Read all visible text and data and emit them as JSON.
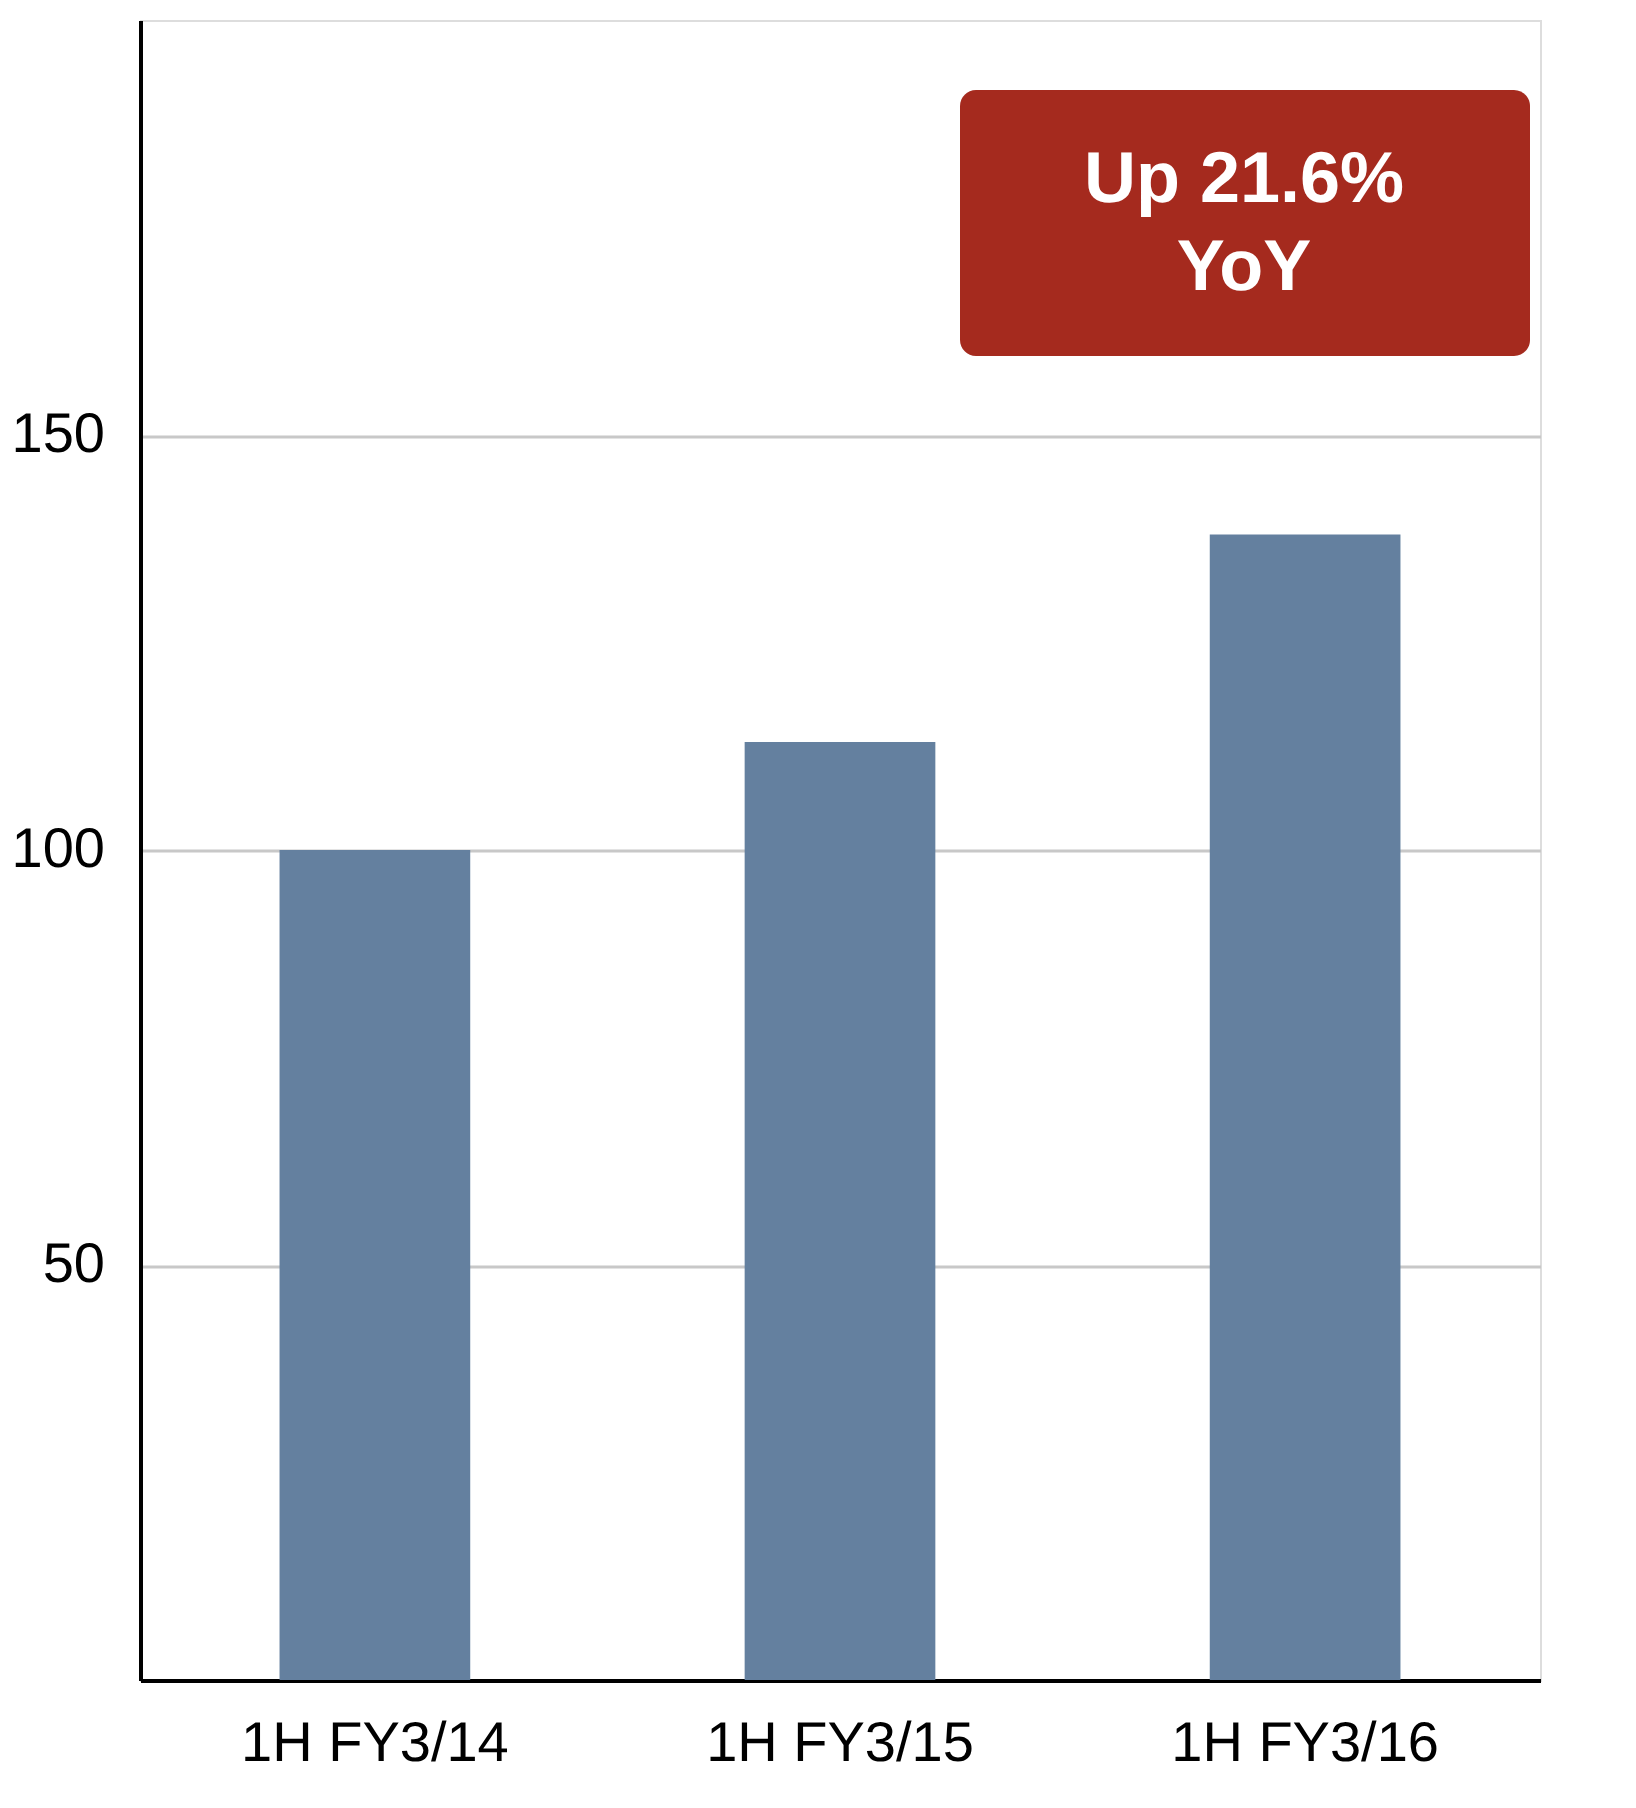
{
  "chart_data": {
    "type": "bar",
    "categories": [
      "1H FY3/14",
      "1H FY3/15",
      "1H FY3/16"
    ],
    "values": [
      100,
      113,
      138
    ],
    "color": "#64809f",
    "ylim": [
      0,
      200
    ],
    "yticks": [
      50,
      100,
      150
    ],
    "grid": "y",
    "annotations": [
      "Up 21.6%\nYoY"
    ]
  }
}
